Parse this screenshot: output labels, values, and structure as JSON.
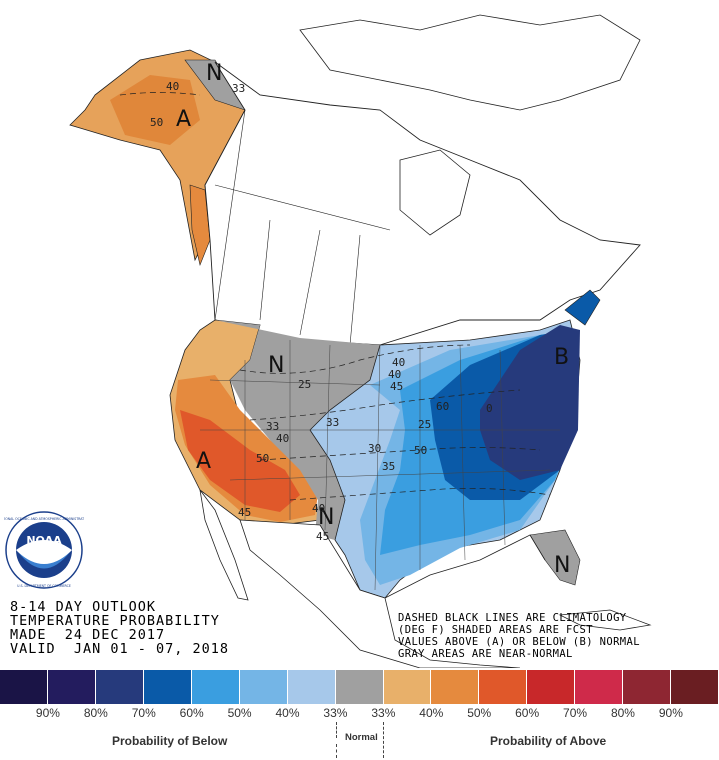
{
  "map": {
    "region_letters": [
      {
        "id": "alaska-a",
        "text": "A"
      },
      {
        "id": "alaska-n",
        "text": "N"
      },
      {
        "id": "west-a",
        "text": "A"
      },
      {
        "id": "nrock-n",
        "text": "N"
      },
      {
        "id": "sw-n",
        "text": "N"
      },
      {
        "id": "east-b",
        "text": "B"
      },
      {
        "id": "fl-n",
        "text": "N"
      }
    ],
    "contour_labels": [
      {
        "id": "ak-40",
        "text": "40"
      },
      {
        "id": "ak-33",
        "text": "33"
      },
      {
        "id": "ak-50",
        "text": "50"
      },
      {
        "id": "nr-25",
        "text": "25"
      },
      {
        "id": "w-33",
        "text": "33"
      },
      {
        "id": "w-40",
        "text": "40"
      },
      {
        "id": "w-50",
        "text": "50"
      },
      {
        "id": "c-33",
        "text": "33"
      },
      {
        "id": "c-40a",
        "text": "40"
      },
      {
        "id": "c-40b",
        "text": "40"
      },
      {
        "id": "c-45",
        "text": "45"
      },
      {
        "id": "c-50",
        "text": "50"
      },
      {
        "id": "c-60",
        "text": "60"
      },
      {
        "id": "c-70",
        "text": "0"
      },
      {
        "id": "c-25",
        "text": "25"
      },
      {
        "id": "c-30",
        "text": "30"
      },
      {
        "id": "c-35",
        "text": "35"
      },
      {
        "id": "sw-40",
        "text": "40"
      },
      {
        "id": "sw-45a",
        "text": "45"
      },
      {
        "id": "sw-45b",
        "text": "45"
      }
    ]
  },
  "title": {
    "line1": "8-14 DAY OUTLOOK",
    "line2": "TEMPERATURE PROBABILITY",
    "line3": "MADE  24 DEC 2017",
    "line4": "VALID  JAN 01 - 07, 2018"
  },
  "notes": {
    "line1": "DASHED BLACK LINES ARE CLIMATOLOGY",
    "line2": "(DEG F) SHADED AREAS ARE FCST",
    "line3": "VALUES ABOVE (A) OR BELOW (B) NORMAL",
    "line4": "GRAY AREAS ARE NEAR-NORMAL"
  },
  "logo": {
    "text": "NOAA",
    "ring_text": "NATIONAL OCEANIC AND ATMOSPHERIC ADMINISTRATION · U.S. DEPARTMENT OF COMMERCE"
  },
  "legend": {
    "colors": [
      "#1a1446",
      "#231c5e",
      "#263a7c",
      "#0a5aa8",
      "#3a9ee0",
      "#74b5e6",
      "#a6c8ea",
      "#a0a0a0",
      "#e8b06a",
      "#e58a3e",
      "#e0582a",
      "#c8282a",
      "#cf2a4a",
      "#8e2632",
      "#6a1e22"
    ],
    "labels": [
      "90%",
      "80%",
      "70%",
      "60%",
      "50%",
      "40%",
      "33%",
      "33%",
      "40%",
      "50%",
      "60%",
      "70%",
      "80%",
      "90%"
    ],
    "below_caption": "Probability of Below",
    "normal_caption": "Normal",
    "above_caption": "Probability of Above"
  }
}
